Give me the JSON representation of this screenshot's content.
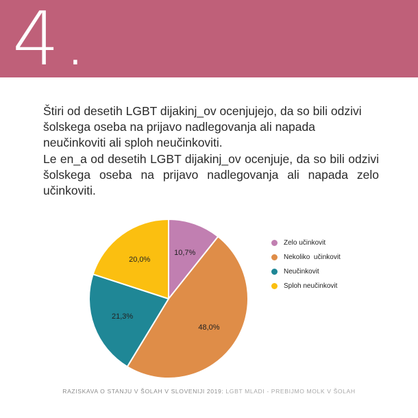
{
  "header": {
    "number": "4.",
    "color": "#bf6079"
  },
  "text": {
    "paragraph1": "Štiri od desetih LGBT dijakinj_ov ocenjujejo, da so bili odzivi šolskega oseba na prijavo nadlegovanja ali napada neučinkoviti ali sploh neučinkoviti.",
    "paragraph2": "Le en_a od desetih LGBT dijakinj_ov ocenjuje, da so bili odzivi šolskega oseba na prijavo nadlegovanja ali napada zelo učinkoviti."
  },
  "chart_data": {
    "type": "pie",
    "title": "",
    "legend_position": "right",
    "slices": [
      {
        "label": "Zelo učinkovit",
        "value": 10.7,
        "value_label": "10,7%",
        "color": "#c17fb1"
      },
      {
        "label": "Nekoliko  učinkovit",
        "value": 48.0,
        "value_label": "48,0%",
        "color": "#df8d48"
      },
      {
        "label": "Neučinkovit",
        "value": 21.3,
        "value_label": "21,3%",
        "color": "#1f8796"
      },
      {
        "label": "Sploh neučinkovit",
        "value": 20.0,
        "value_label": "20,0%",
        "color": "#fbbf10"
      }
    ]
  },
  "footer": {
    "main": "RAZISKAVA O STANJU V ŠOLAH V SLOVENIJI 2019: ",
    "source": "LGBT MLADI - PREBIJMO MOLK V ŠOLAH"
  }
}
